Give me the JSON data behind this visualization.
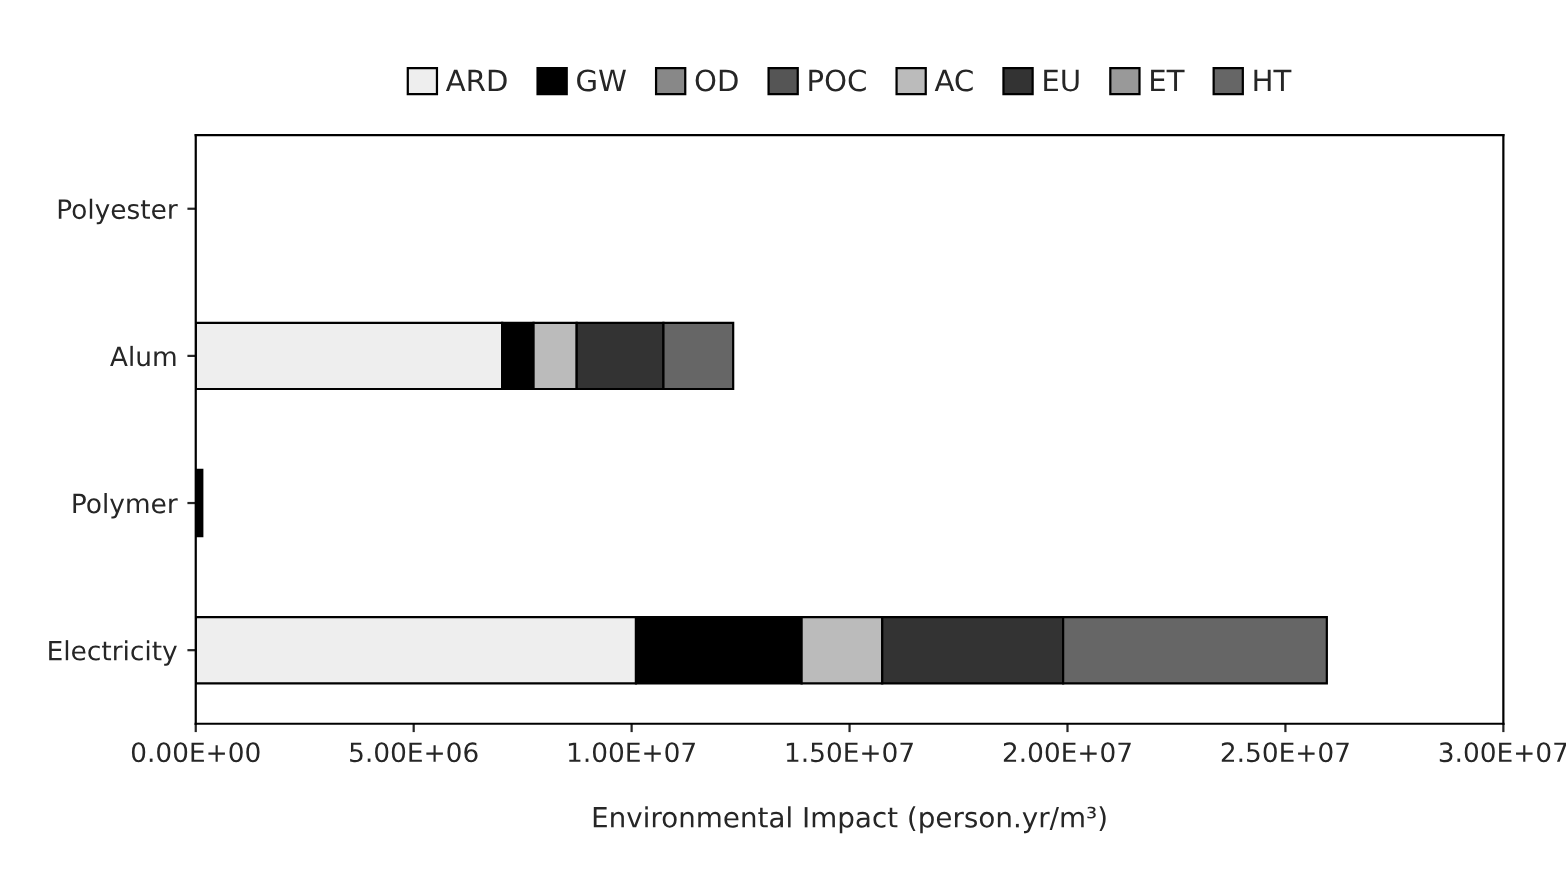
{
  "chart_data": {
    "type": "bar",
    "orientation": "horizontal",
    "stacked": true,
    "categories": [
      "Polyester",
      "Alum",
      "Polymer",
      "Electricity"
    ],
    "series": [
      {
        "name": "ARD",
        "color": "#eeeeee",
        "values": [
          0,
          7030000,
          0,
          10100000
        ]
      },
      {
        "name": "GW",
        "color": "#000000",
        "values": [
          0,
          720000,
          150000,
          3800000
        ]
      },
      {
        "name": "OD",
        "color": "#888888",
        "values": [
          0,
          0,
          0,
          0
        ]
      },
      {
        "name": "POC",
        "color": "#555555",
        "values": [
          0,
          0,
          0,
          0
        ]
      },
      {
        "name": "AC",
        "color": "#bbbbbb",
        "values": [
          0,
          990000,
          0,
          1850000
        ]
      },
      {
        "name": "EU",
        "color": "#333333",
        "values": [
          0,
          1990000,
          0,
          4150000
        ]
      },
      {
        "name": "ET",
        "color": "#999999",
        "values": [
          0,
          0,
          0,
          0
        ]
      },
      {
        "name": "HT",
        "color": "#666666",
        "values": [
          0,
          1600000,
          0,
          6050000
        ]
      }
    ],
    "xlim": [
      0,
      30000000
    ],
    "xticks": [
      {
        "value": 0,
        "label": "0.00E+00"
      },
      {
        "value": 5000000,
        "label": "5.00E+06"
      },
      {
        "value": 10000000,
        "label": "1.00E+07"
      },
      {
        "value": 15000000,
        "label": "1.50E+07"
      },
      {
        "value": 20000000,
        "label": "2.00E+07"
      },
      {
        "value": 25000000,
        "label": "2.50E+07"
      },
      {
        "value": 30000000,
        "label": "3.00E+07"
      }
    ],
    "xlabel": "Environmental Impact (person.yr/m³)",
    "legend": "top",
    "grid": false
  }
}
